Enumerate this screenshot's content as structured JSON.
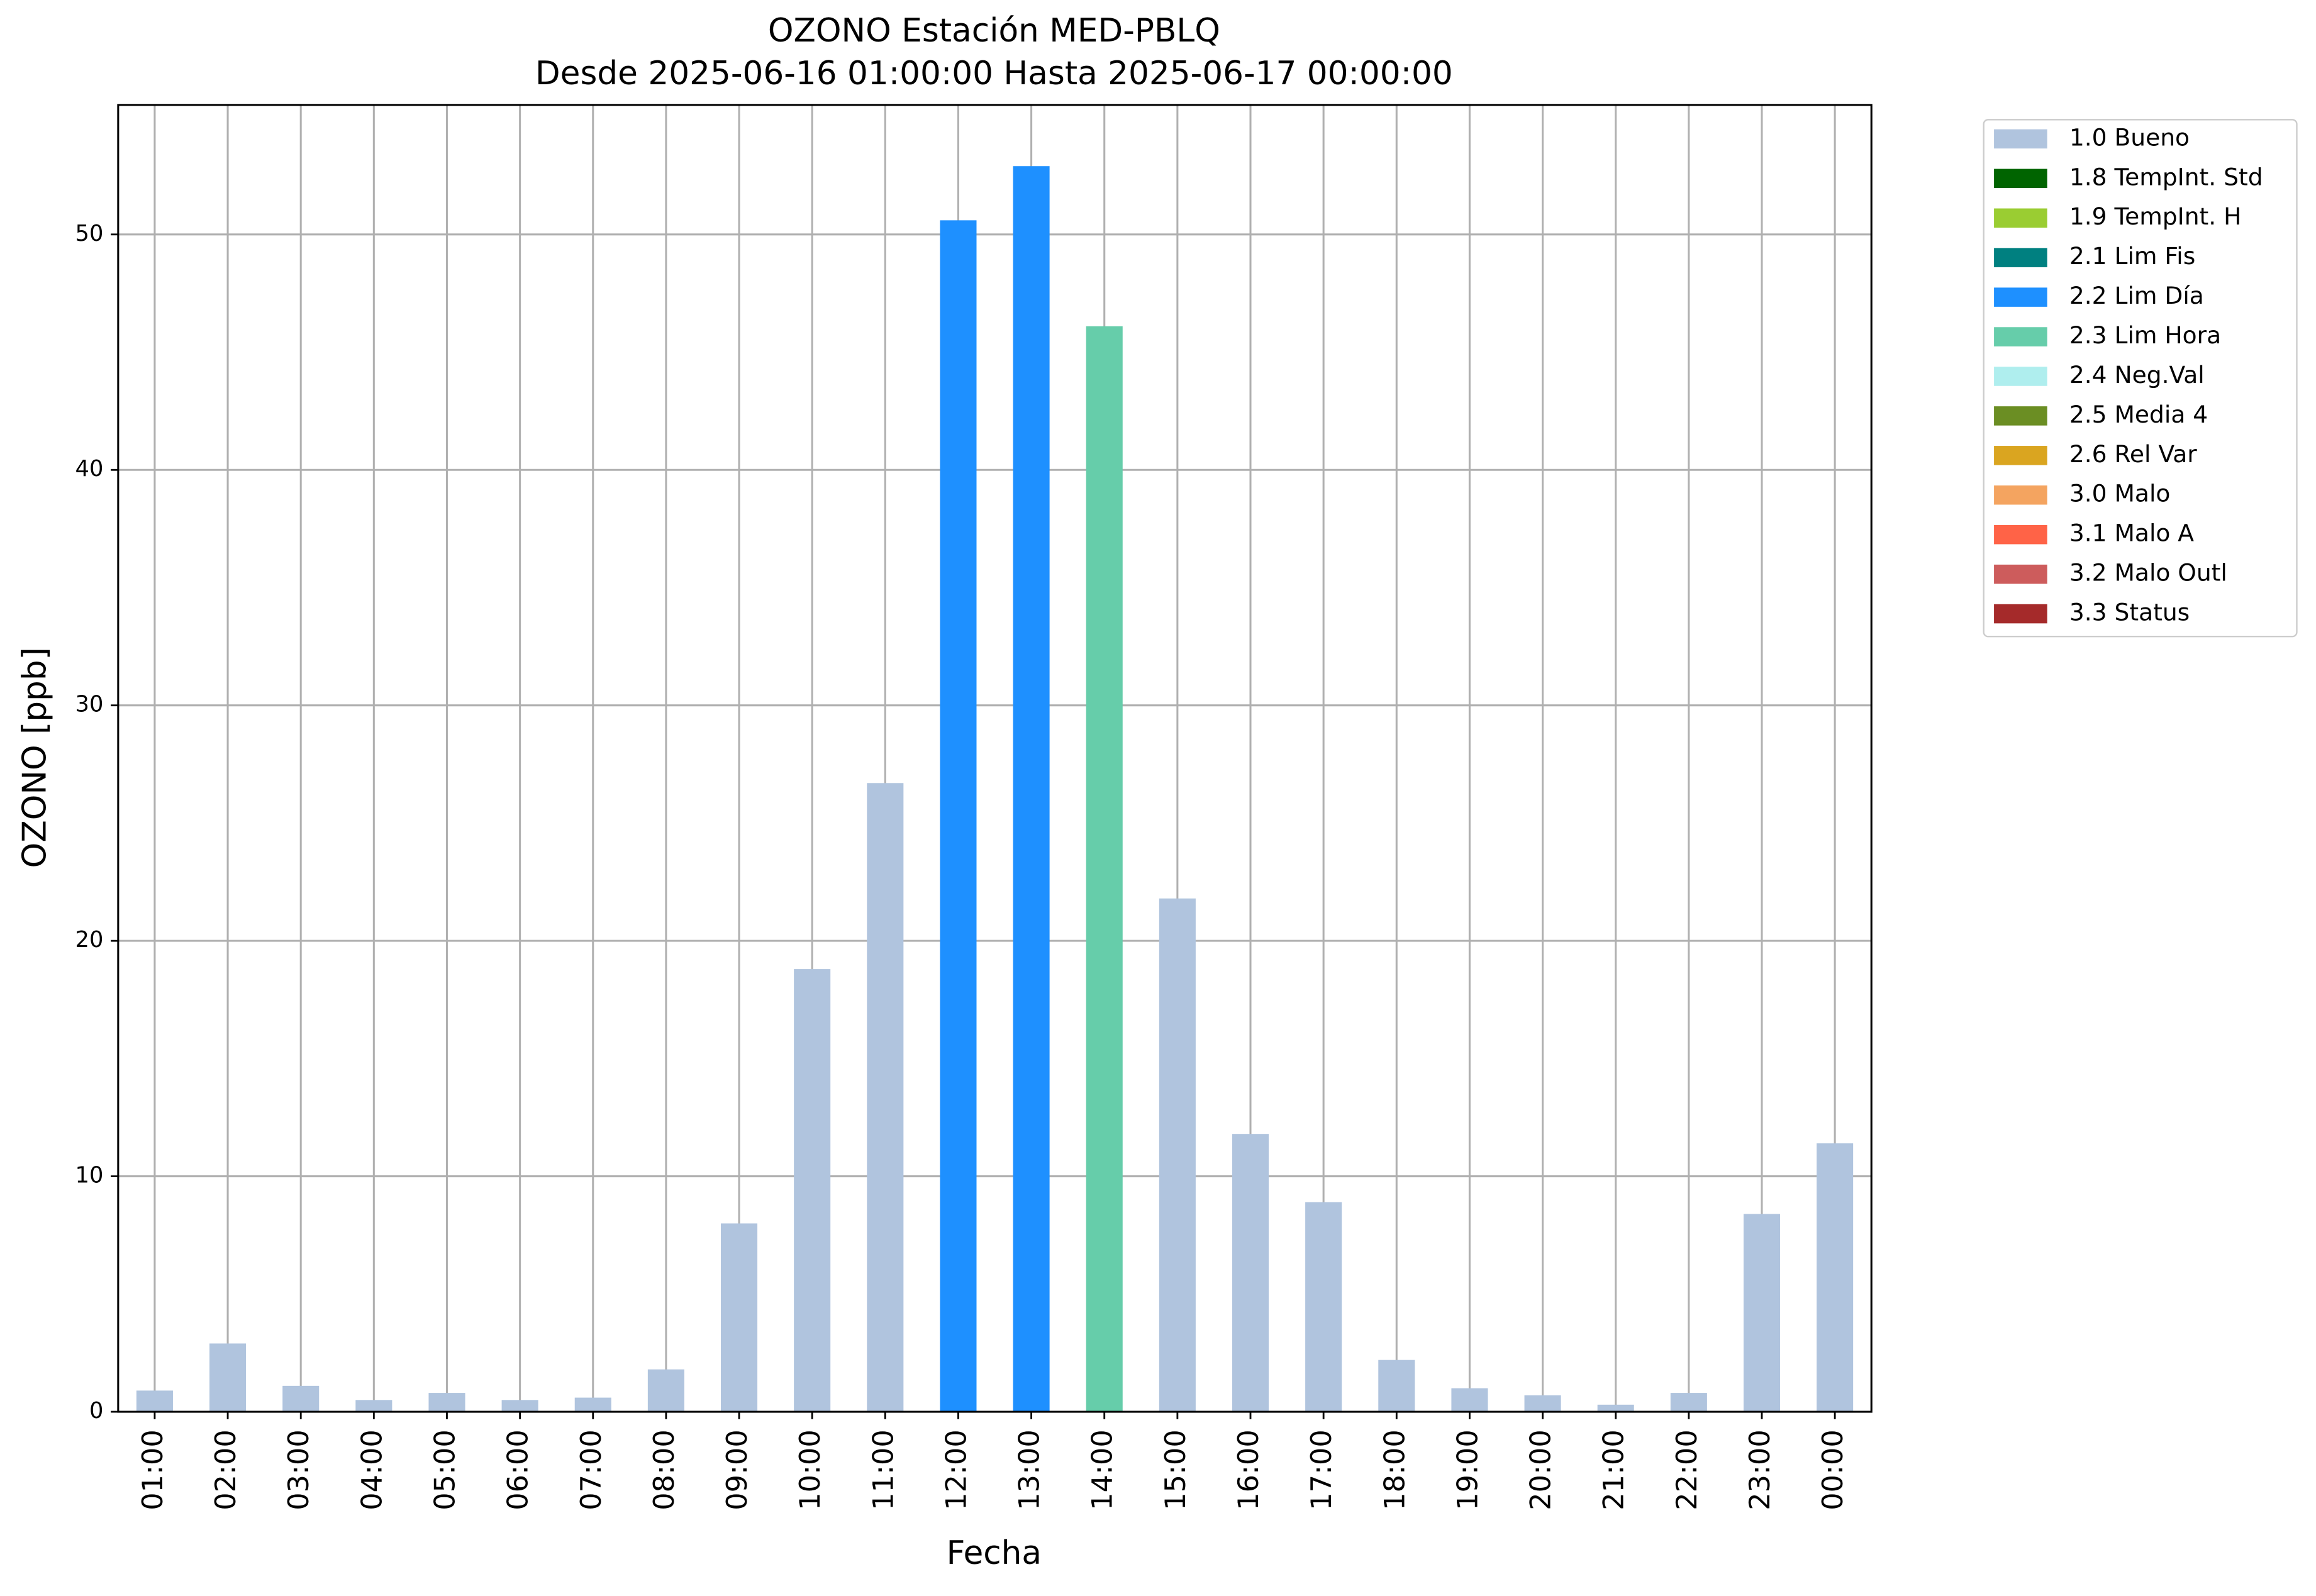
{
  "chart_data": {
    "type": "bar",
    "title": "OZONO Estación MED-PBLQ",
    "subtitle": "Desde 2025-06-16 01:00:00 Hasta 2025-06-17 00:00:00",
    "x_label": "Fecha",
    "y_label": "OZONO [ppb]",
    "categories": [
      "01:00",
      "02:00",
      "03:00",
      "04:00",
      "05:00",
      "06:00",
      "07:00",
      "08:00",
      "09:00",
      "10:00",
      "11:00",
      "12:00",
      "13:00",
      "14:00",
      "15:00",
      "16:00",
      "17:00",
      "18:00",
      "19:00",
      "20:00",
      "21:00",
      "22:00",
      "23:00",
      "00:00"
    ],
    "series": [
      {
        "name": "1.0 Bueno",
        "color": "#b0c4de",
        "values": [
          0.9,
          2.9,
          1.1,
          0.5,
          0.8,
          0.5,
          0.6,
          1.8,
          8.0,
          18.8,
          26.7,
          null,
          null,
          null,
          21.8,
          11.8,
          8.9,
          2.2,
          1.0,
          0.7,
          0.3,
          0.8,
          8.4,
          11.4
        ]
      },
      {
        "name": "1.8 TempInt. Std",
        "color": "#006400",
        "values": [
          null,
          null,
          null,
          null,
          null,
          null,
          null,
          null,
          null,
          null,
          null,
          null,
          null,
          null,
          null,
          null,
          null,
          null,
          null,
          null,
          null,
          null,
          null,
          null
        ]
      },
      {
        "name": "1.9 TempInt. H",
        "color": "#9acd32",
        "values": [
          null,
          null,
          null,
          null,
          null,
          null,
          null,
          null,
          null,
          null,
          null,
          null,
          null,
          null,
          null,
          null,
          null,
          null,
          null,
          null,
          null,
          null,
          null,
          null
        ]
      },
      {
        "name": "2.1 Lim Fis",
        "color": "#008080",
        "values": [
          null,
          null,
          null,
          null,
          null,
          null,
          null,
          null,
          null,
          null,
          null,
          null,
          null,
          null,
          null,
          null,
          null,
          null,
          null,
          null,
          null,
          null,
          null,
          null
        ]
      },
      {
        "name": "2.2 Lim Día",
        "color": "#1e90ff",
        "values": [
          null,
          null,
          null,
          null,
          null,
          null,
          null,
          null,
          null,
          null,
          null,
          50.6,
          52.9,
          null,
          null,
          null,
          null,
          null,
          null,
          null,
          null,
          null,
          null,
          null
        ]
      },
      {
        "name": "2.3 Lim Hora",
        "color": "#66cdaa",
        "values": [
          null,
          null,
          null,
          null,
          null,
          null,
          null,
          null,
          null,
          null,
          null,
          null,
          null,
          46.1,
          null,
          null,
          null,
          null,
          null,
          null,
          null,
          null,
          null,
          null
        ]
      },
      {
        "name": "2.4 Neg.Val",
        "color": "#afeeee",
        "values": [
          null,
          null,
          null,
          null,
          null,
          null,
          null,
          null,
          null,
          null,
          null,
          null,
          null,
          null,
          null,
          null,
          null,
          null,
          null,
          null,
          null,
          null,
          null,
          null
        ]
      },
      {
        "name": "2.5 Media 4",
        "color": "#6b8e23",
        "values": [
          null,
          null,
          null,
          null,
          null,
          null,
          null,
          null,
          null,
          null,
          null,
          null,
          null,
          null,
          null,
          null,
          null,
          null,
          null,
          null,
          null,
          null,
          null,
          null
        ]
      },
      {
        "name": "2.6 Rel Var",
        "color": "#daa520",
        "values": [
          null,
          null,
          null,
          null,
          null,
          null,
          null,
          null,
          null,
          null,
          null,
          null,
          null,
          null,
          null,
          null,
          null,
          null,
          null,
          null,
          null,
          null,
          null,
          null
        ]
      },
      {
        "name": "3.0 Malo",
        "color": "#f4a460",
        "values": [
          null,
          null,
          null,
          null,
          null,
          null,
          null,
          null,
          null,
          null,
          null,
          null,
          null,
          null,
          null,
          null,
          null,
          null,
          null,
          null,
          null,
          null,
          null,
          null
        ]
      },
      {
        "name": "3.1 Malo A",
        "color": "#ff6347",
        "values": [
          null,
          null,
          null,
          null,
          null,
          null,
          null,
          null,
          null,
          null,
          null,
          null,
          null,
          null,
          null,
          null,
          null,
          null,
          null,
          null,
          null,
          null,
          null,
          null
        ]
      },
      {
        "name": "3.2 Malo Outl",
        "color": "#cd5c5c",
        "values": [
          null,
          null,
          null,
          null,
          null,
          null,
          null,
          null,
          null,
          null,
          null,
          null,
          null,
          null,
          null,
          null,
          null,
          null,
          null,
          null,
          null,
          null,
          null,
          null
        ]
      },
      {
        "name": "3.3 Status",
        "color": "#a52a2a",
        "values": [
          null,
          null,
          null,
          null,
          null,
          null,
          null,
          null,
          null,
          null,
          null,
          null,
          null,
          null,
          null,
          null,
          null,
          null,
          null,
          null,
          null,
          null,
          null,
          null
        ]
      }
    ],
    "ylim": [
      0,
      55.5
    ],
    "yticks": [
      0,
      10,
      20,
      30,
      40,
      50
    ],
    "grid": true,
    "legend": "outside-right"
  }
}
